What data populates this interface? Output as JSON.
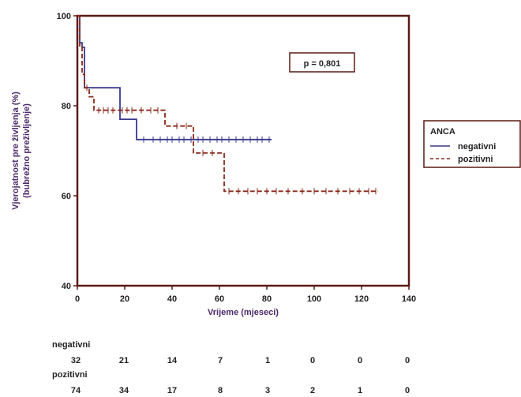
{
  "chart_data": {
    "type": "line",
    "step": true,
    "xlabel": "Vrijeme (mjeseci)",
    "ylabel_lines": [
      "Vjerojatnost pre življenja (%)",
      "(bubrežno preživljenje)"
    ],
    "xlim": [
      0,
      140
    ],
    "ylim": [
      40,
      100
    ],
    "xticks": [
      0,
      20,
      40,
      60,
      80,
      100,
      120,
      140
    ],
    "yticks": [
      40,
      60,
      80,
      100
    ],
    "annotation": "p = 0,801",
    "legend": {
      "title": "ANCA",
      "placement": "right"
    },
    "series": [
      {
        "name": "negativni",
        "color": "#3a3a8c",
        "dash": "solid",
        "points": [
          [
            0,
            100
          ],
          [
            1,
            100
          ],
          [
            1,
            94
          ],
          [
            2,
            94
          ],
          [
            2,
            93
          ],
          [
            3,
            93
          ],
          [
            3,
            84
          ],
          [
            18,
            84
          ],
          [
            18,
            77
          ],
          [
            25,
            77
          ],
          [
            25,
            72.5
          ],
          [
            82,
            72.5
          ]
        ],
        "censor": [
          28,
          32,
          35,
          38,
          40,
          43,
          45,
          48,
          51,
          53,
          56,
          59,
          61,
          64,
          67,
          70,
          73,
          76,
          78,
          81
        ]
      },
      {
        "name": "pozitivni",
        "color": "#8b2a1a",
        "dash": "dashed",
        "points": [
          [
            0,
            100
          ],
          [
            1,
            100
          ],
          [
            1,
            93
          ],
          [
            2,
            93
          ],
          [
            2,
            87
          ],
          [
            3,
            87
          ],
          [
            3,
            84
          ],
          [
            5,
            84
          ],
          [
            5,
            82
          ],
          [
            7,
            82
          ],
          [
            7,
            79
          ],
          [
            37,
            79
          ],
          [
            37,
            75.5
          ],
          [
            49,
            75.5
          ],
          [
            49,
            69.5
          ],
          [
            62,
            69.5
          ],
          [
            62,
            61
          ],
          [
            127,
            61
          ]
        ],
        "censor": [
          4,
          9,
          11,
          13,
          15,
          19,
          21,
          23,
          27,
          31,
          34,
          42,
          46,
          53,
          57,
          64,
          68,
          72,
          76,
          80,
          84,
          89,
          95,
          100,
          105,
          110,
          115,
          119,
          123,
          126
        ]
      }
    ],
    "risk_table": {
      "rows": [
        {
          "label": "negativni",
          "values": [
            "32",
            "21",
            "14",
            "7",
            "1",
            "0",
            "0",
            "0"
          ]
        },
        {
          "label": "pozitivni",
          "values": [
            "74",
            "34",
            "17",
            "8",
            "3",
            "2",
            "1",
            "0"
          ]
        }
      ]
    }
  }
}
